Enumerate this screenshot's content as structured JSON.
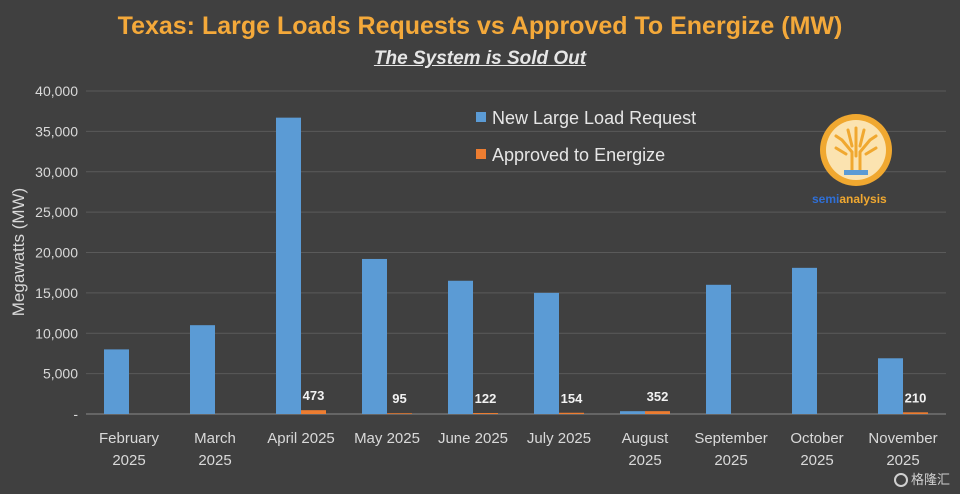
{
  "chart_data": {
    "type": "bar",
    "title": "Texas: Large Loads Requests vs Approved To Energize (MW)",
    "subtitle": "The System is Sold Out",
    "ylabel": "Megawatts (MW)",
    "xlabel": "",
    "ylim": [
      0,
      40000
    ],
    "yticks": [
      0,
      5000,
      10000,
      15000,
      20000,
      25000,
      30000,
      35000,
      40000
    ],
    "ytick_labels": [
      "-",
      "5,000",
      "10,000",
      "15,000",
      "20,000",
      "25,000",
      "30,000",
      "35,000",
      "40,000"
    ],
    "categories": [
      [
        "February",
        "2025"
      ],
      [
        "March",
        "2025"
      ],
      [
        "April 2025"
      ],
      [
        "May 2025"
      ],
      [
        "June 2025"
      ],
      [
        "July 2025"
      ],
      [
        "August",
        "2025"
      ],
      [
        "September",
        "2025"
      ],
      [
        "October",
        "2025"
      ],
      [
        "November",
        "2025"
      ]
    ],
    "grid": true,
    "legend_position": "top-right",
    "series": [
      {
        "name": "New Large Load Request",
        "color": "#5b9bd5",
        "values": [
          8000,
          11000,
          36700,
          19200,
          16500,
          15000,
          350,
          16000,
          18100,
          6900
        ]
      },
      {
        "name": "Approved to Energize",
        "color": "#ed7d31",
        "values": [
          0,
          0,
          473,
          95,
          122,
          154,
          352,
          0,
          0,
          210
        ],
        "data_labels": [
          "",
          "",
          "473",
          "95",
          "122",
          "154",
          "352",
          "",
          "",
          "210"
        ]
      }
    ]
  },
  "logo": {
    "text_a": "semi",
    "text_b": "analysis",
    "colors": {
      "badge": "#f0a830",
      "inner": "#fbe3b0",
      "text_a": "#2f6fd6",
      "text_b": "#f0a830"
    }
  },
  "watermark": {
    "text": "格隆汇",
    "icon": "search-circle-icon"
  }
}
